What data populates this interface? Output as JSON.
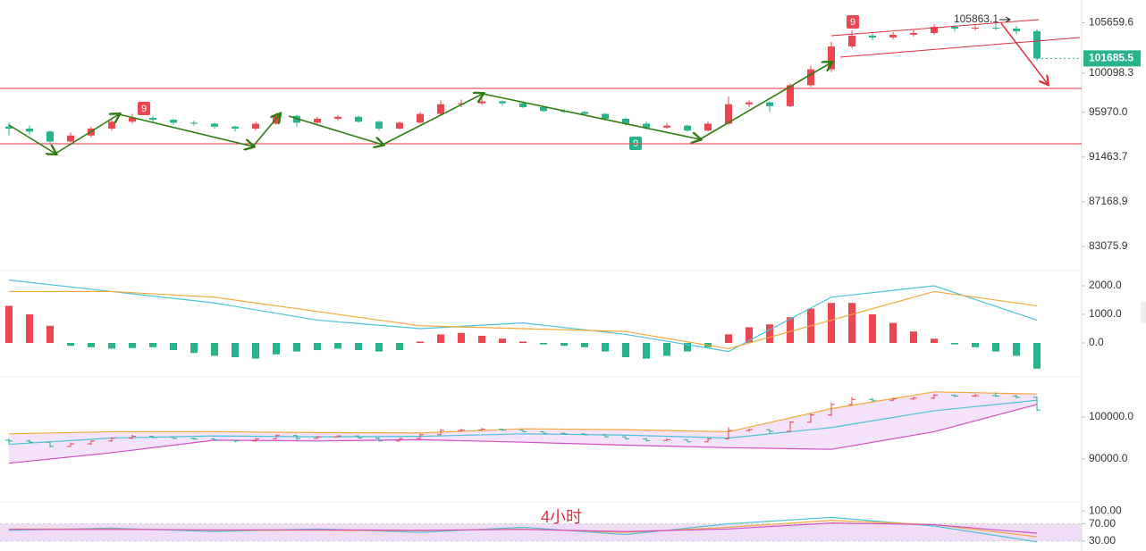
{
  "chart_data": {
    "type": "candlestick",
    "log": true,
    "up_color": "#ec4651",
    "down_color": "#27b38c",
    "ylim": [
      81190,
      108270
    ],
    "yticks": [
      105659.6,
      100098.3,
      {
        "value": 95970,
        "label": "95970.0"
      },
      91463.7,
      87168.9,
      83075.9
    ],
    "period_label": "4小时",
    "td_labels": [
      9,
      9,
      9
    ],
    "candles": [
      [
        94500,
        94900,
        93600,
        94300
      ],
      [
        94300,
        94600,
        93700,
        94000
      ],
      [
        94000,
        94100,
        92800,
        93000
      ],
      [
        93000,
        93900,
        92900,
        93600
      ],
      [
        93600,
        94500,
        93400,
        94300
      ],
      [
        94300,
        95200,
        94100,
        95000
      ],
      [
        95000,
        95800,
        94800,
        95400
      ],
      [
        95400,
        95600,
        95000,
        95200
      ],
      [
        95200,
        95300,
        94700,
        94900
      ],
      [
        94900,
        95100,
        94600,
        94800
      ],
      [
        94800,
        94900,
        94300,
        94500
      ],
      [
        94500,
        94600,
        94000,
        94300
      ],
      [
        94300,
        95000,
        94100,
        94800
      ],
      [
        94800,
        95900,
        94700,
        95600
      ],
      [
        95600,
        95700,
        94500,
        94900
      ],
      [
        94900,
        95500,
        94800,
        95300
      ],
      [
        95300,
        95700,
        95100,
        95500
      ],
      [
        95500,
        95600,
        94900,
        95000
      ],
      [
        95000,
        95100,
        94100,
        94300
      ],
      [
        94300,
        95000,
        94200,
        94900
      ],
      [
        94900,
        96000,
        94800,
        95800
      ],
      [
        95800,
        97200,
        95700,
        96800
      ],
      [
        96800,
        97300,
        96500,
        96900
      ],
      [
        96900,
        97400,
        96700,
        97100
      ],
      [
        97100,
        97200,
        96700,
        96900
      ],
      [
        96900,
        97000,
        96400,
        96500
      ],
      [
        96500,
        96600,
        96000,
        96100
      ],
      [
        96100,
        96300,
        95900,
        96000
      ],
      [
        96000,
        96100,
        95600,
        95800
      ],
      [
        95800,
        95900,
        95100,
        95300
      ],
      [
        95300,
        95400,
        94600,
        94800
      ],
      [
        94800,
        95000,
        94200,
        94400
      ],
      [
        94400,
        94900,
        94300,
        94600
      ],
      [
        94600,
        94700,
        94000,
        94100
      ],
      [
        94100,
        95000,
        94000,
        94800
      ],
      [
        94800,
        97600,
        94700,
        96800
      ],
      [
        96800,
        97200,
        96500,
        97000
      ],
      [
        97000,
        97100,
        96000,
        96600
      ],
      [
        96600,
        99000,
        96500,
        98800
      ],
      [
        98800,
        100900,
        98600,
        100500
      ],
      [
        100500,
        103500,
        100200,
        103000
      ],
      [
        103000,
        104800,
        102800,
        104200
      ],
      [
        104200,
        104600,
        103700,
        104000
      ],
      [
        104000,
        104600,
        103800,
        104300
      ],
      [
        104300,
        104900,
        104100,
        104500
      ],
      [
        104500,
        105500,
        104300,
        105200
      ],
      [
        105200,
        105400,
        104700,
        105000
      ],
      [
        105000,
        105500,
        104800,
        105100
      ],
      [
        105100,
        105863.1,
        104800,
        105000
      ],
      [
        105000,
        105300,
        104400,
        104700
      ],
      [
        104700,
        104900,
        101400,
        101685.5
      ]
    ],
    "macd": {
      "ylim": [
        -1125,
        2470
      ],
      "yticks": [
        {
          "value": 0,
          "label": "0.0"
        },
        {
          "value": 1000,
          "label": "1000.0"
        },
        {
          "value": 2000,
          "label": "2000.0"
        }
      ],
      "dif_color": "#4cc3d6",
      "dea_color": "#f2a93b",
      "hist": [
        1300,
        1000,
        600,
        -100,
        -150,
        -200,
        -180,
        -150,
        -250,
        -350,
        -450,
        -500,
        -550,
        -400,
        -300,
        -250,
        -200,
        -250,
        -300,
        -250,
        50,
        300,
        350,
        250,
        150,
        50,
        -50,
        -100,
        -150,
        -300,
        -500,
        -550,
        -450,
        -300,
        -150,
        300,
        550,
        650,
        900,
        1200,
        1400,
        1400,
        1000,
        700,
        400,
        150,
        -50,
        -150,
        -300,
        -450,
        -900
      ],
      "dif": [
        2200,
        1800,
        1400,
        800,
        500,
        700,
        300,
        -300,
        1600,
        2000,
        800
      ],
      "dea": [
        1800,
        1800,
        1600,
        1100,
        600,
        500,
        400,
        -200,
        800,
        1800,
        1300
      ]
    },
    "boll": {
      "ylim": [
        80210,
        108940
      ],
      "yticks": [
        {
          "value": 100000,
          "label": "100000.0"
        },
        {
          "value": 90000,
          "label": "90000.0"
        }
      ],
      "upper_color": "#f2a93b",
      "mid_color": "#4cc3d6",
      "lower_color": "#d24fc4",
      "fill": "#f4e3fb",
      "upper": [
        96000,
        96500,
        96500,
        96300,
        96200,
        97200,
        97000,
        96500,
        102000,
        106000,
        105500
      ],
      "mid": [
        93500,
        95000,
        95500,
        95300,
        95400,
        96000,
        95700,
        95000,
        97500,
        101500,
        104000
      ],
      "lower": [
        89000,
        91500,
        94500,
        94300,
        94600,
        94000,
        93300,
        92700,
        92300,
        96500,
        103000
      ]
    },
    "rsi": {
      "ylim": [
        17,
        115
      ],
      "yticks": [
        {
          "value": 100,
          "label": "100.00"
        },
        {
          "value": 70,
          "label": "70.00"
        },
        {
          "value": 30,
          "label": "30.00"
        }
      ],
      "band": [
        30,
        70
      ],
      "band_color": "#f1dcf8",
      "colors": [
        "#4cc3d6",
        "#f2a93b",
        "#d24fc4"
      ],
      "lines": [
        [
          55,
          60,
          52,
          58,
          50,
          62,
          45,
          70,
          85,
          65,
          28
        ],
        [
          58,
          58,
          55,
          55,
          54,
          58,
          50,
          62,
          78,
          68,
          40
        ],
        [
          57,
          57,
          56,
          56,
          55,
          57,
          52,
          58,
          72,
          68,
          48
        ]
      ]
    }
  }
}
